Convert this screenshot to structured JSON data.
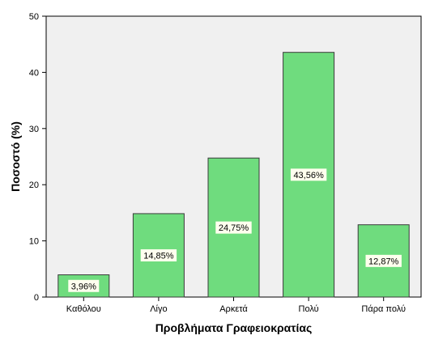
{
  "chart_data": {
    "type": "bar",
    "categories": [
      "Καθόλου",
      "Λίγο",
      "Αρκετά",
      "Πολύ",
      "Πάρα πολύ"
    ],
    "values": [
      3.96,
      14.85,
      24.75,
      43.56,
      12.87
    ],
    "data_labels": [
      "3,96%",
      "14,85%",
      "24,75%",
      "43,56%",
      "12,87%"
    ],
    "xlabel": "Προβλήματα Γραφειοκρατίας",
    "ylabel": "Ποσοστό (%)",
    "ylim": [
      0,
      50
    ],
    "yticks": [
      "0",
      "10",
      "20",
      "30",
      "40",
      "50"
    ],
    "yticks_values": [
      0,
      10,
      20,
      30,
      40,
      50
    ],
    "grid": false,
    "colors": {
      "plot_background": "#f0f0f0",
      "bar_fill": "#6fdc7e",
      "bar_stroke": "#3a3a3a",
      "label_box": "#ffffee"
    }
  }
}
